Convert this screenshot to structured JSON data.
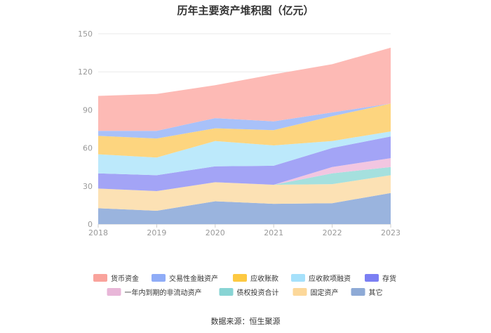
{
  "chart_data": {
    "type": "area",
    "stacked": true,
    "title": "历年主要资产堆积图（亿元）",
    "x": [
      "2018",
      "2019",
      "2020",
      "2021",
      "2022",
      "2023"
    ],
    "ylim": [
      0,
      150
    ],
    "yticks": [
      0,
      30,
      60,
      90,
      120,
      150
    ],
    "grid": true,
    "legend_position": "bottom",
    "series": [
      {
        "name": "其它",
        "color": "#9ab4de",
        "values": [
          12.5,
          10.5,
          18,
          16,
          16.5,
          24.5
        ]
      },
      {
        "name": "固定资产",
        "color": "#fce1b4",
        "values": [
          15.5,
          15.5,
          15,
          15,
          15,
          14
        ]
      },
      {
        "name": "债权投资合计",
        "color": "#a5e0de",
        "values": [
          0,
          0,
          0,
          0,
          8.5,
          6.5
        ]
      },
      {
        "name": "一年内到期的非流动资产",
        "color": "#f2c6e1",
        "values": [
          0,
          0,
          0,
          0,
          5,
          7
        ]
      },
      {
        "name": "存货",
        "color": "#a3a4f6",
        "values": [
          12,
          12.5,
          12.5,
          15,
          15,
          17
        ]
      },
      {
        "name": "应收款项融资",
        "color": "#bce9fb",
        "values": [
          15,
          14,
          20,
          16,
          5.5,
          4
        ]
      },
      {
        "name": "应收账款",
        "color": "#fdd57f",
        "values": [
          14.5,
          15,
          10,
          12,
          19.5,
          22
        ]
      },
      {
        "name": "交易性金融资产",
        "color": "#a8c1f9",
        "values": [
          4,
          6,
          8,
          7,
          3,
          0
        ]
      },
      {
        "name": "货币资金",
        "color": "#fdbab5",
        "values": [
          27.5,
          29,
          26,
          37,
          38,
          44
        ]
      }
    ],
    "legend": [
      {
        "name": "货币资金",
        "color": "#f9a39c"
      },
      {
        "name": "交易性金融资产",
        "color": "#8facf7"
      },
      {
        "name": "应收账款",
        "color": "#fdc942"
      },
      {
        "name": "应收款项融资",
        "color": "#a6e1fb"
      },
      {
        "name": "存货",
        "color": "#7b7ff3"
      },
      {
        "name": "一年内到期的非流动资产",
        "color": "#e8b6d8"
      },
      {
        "name": "债权投资合计",
        "color": "#88d4d4"
      },
      {
        "name": "固定资产",
        "color": "#fcd89a"
      },
      {
        "name": "其它",
        "color": "#8eaad6"
      }
    ]
  },
  "source": "数据来源：恒生聚源"
}
